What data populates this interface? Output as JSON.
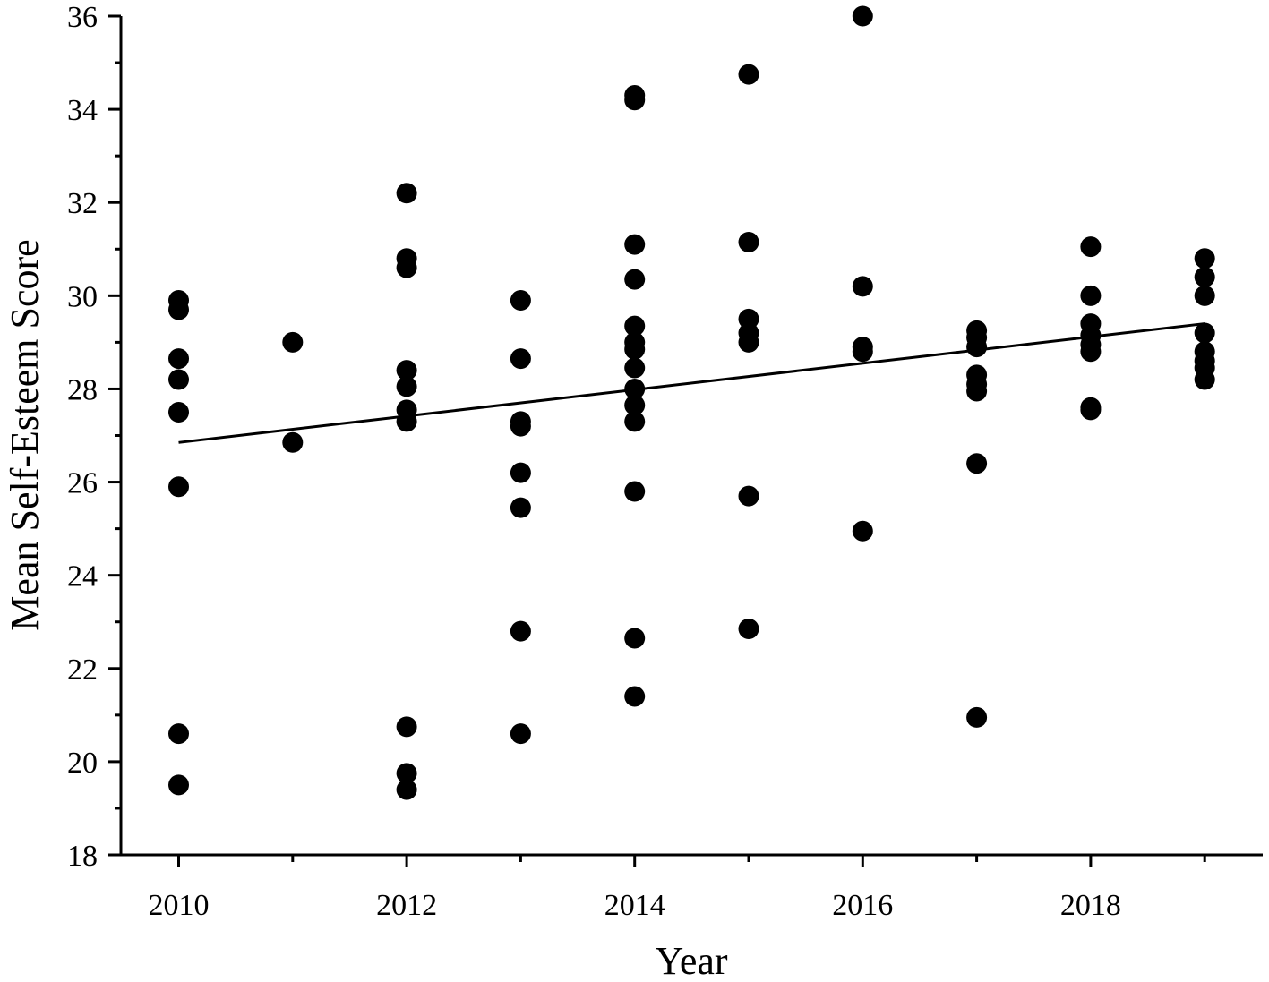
{
  "chart_data": {
    "type": "scatter",
    "xlabel": "Year",
    "ylabel": "Mean Self-Esteem Score",
    "xlim": [
      2009.5,
      2019.5
    ],
    "ylim": [
      18,
      36
    ],
    "x_ticks": [
      2010,
      2012,
      2014,
      2016,
      2018
    ],
    "y_ticks": [
      18,
      20,
      22,
      24,
      26,
      28,
      30,
      32,
      34,
      36
    ],
    "x_tick_labels": [
      "2010",
      "2012",
      "2014",
      "2016",
      "2018"
    ],
    "y_tick_labels": [
      "18",
      "20",
      "22",
      "24",
      "26",
      "28",
      "30",
      "32",
      "34",
      "36"
    ],
    "grid": false,
    "marker_color": "#000000",
    "points": [
      [
        2010,
        29.9
      ],
      [
        2010,
        29.7
      ],
      [
        2010,
        28.65
      ],
      [
        2010,
        28.2
      ],
      [
        2010,
        27.5
      ],
      [
        2010,
        25.9
      ],
      [
        2010,
        20.6
      ],
      [
        2010,
        19.5
      ],
      [
        2011,
        29.0
      ],
      [
        2011,
        26.85
      ],
      [
        2012,
        32.2
      ],
      [
        2012,
        30.8
      ],
      [
        2012,
        30.6
      ],
      [
        2012,
        28.4
      ],
      [
        2012,
        28.05
      ],
      [
        2012,
        27.55
      ],
      [
        2012,
        27.3
      ],
      [
        2012,
        20.75
      ],
      [
        2012,
        19.75
      ],
      [
        2012,
        19.4
      ],
      [
        2013,
        29.9
      ],
      [
        2013,
        28.65
      ],
      [
        2013,
        27.3
      ],
      [
        2013,
        27.2
      ],
      [
        2013,
        26.2
      ],
      [
        2013,
        25.45
      ],
      [
        2013,
        22.8
      ],
      [
        2013,
        20.6
      ],
      [
        2014,
        34.3
      ],
      [
        2014,
        34.2
      ],
      [
        2014,
        31.1
      ],
      [
        2014,
        30.35
      ],
      [
        2014,
        29.35
      ],
      [
        2014,
        29.0
      ],
      [
        2014,
        28.85
      ],
      [
        2014,
        28.45
      ],
      [
        2014,
        28.0
      ],
      [
        2014,
        27.65
      ],
      [
        2014,
        27.3
      ],
      [
        2014,
        25.8
      ],
      [
        2014,
        22.65
      ],
      [
        2014,
        21.4
      ],
      [
        2015,
        34.75
      ],
      [
        2015,
        31.15
      ],
      [
        2015,
        29.5
      ],
      [
        2015,
        29.2
      ],
      [
        2015,
        29.0
      ],
      [
        2015,
        25.7
      ],
      [
        2015,
        22.85
      ],
      [
        2016,
        36.0
      ],
      [
        2016,
        30.2
      ],
      [
        2016,
        28.9
      ],
      [
        2016,
        28.8
      ],
      [
        2016,
        24.95
      ],
      [
        2017,
        29.25
      ],
      [
        2017,
        29.1
      ],
      [
        2017,
        28.9
      ],
      [
        2017,
        28.3
      ],
      [
        2017,
        28.1
      ],
      [
        2017,
        27.95
      ],
      [
        2017,
        26.4
      ],
      [
        2017,
        20.95
      ],
      [
        2018,
        31.05
      ],
      [
        2018,
        30.0
      ],
      [
        2018,
        29.4
      ],
      [
        2018,
        29.15
      ],
      [
        2018,
        28.95
      ],
      [
        2018,
        28.8
      ],
      [
        2018,
        27.6
      ],
      [
        2018,
        27.55
      ],
      [
        2019,
        30.8
      ],
      [
        2019,
        30.4
      ],
      [
        2019,
        30.0
      ],
      [
        2019,
        29.2
      ],
      [
        2019,
        28.8
      ],
      [
        2019,
        28.6
      ],
      [
        2019,
        28.45
      ],
      [
        2019,
        28.2
      ]
    ],
    "trend_line": {
      "x": [
        2010,
        2019
      ],
      "y": [
        26.85,
        29.4
      ]
    }
  }
}
